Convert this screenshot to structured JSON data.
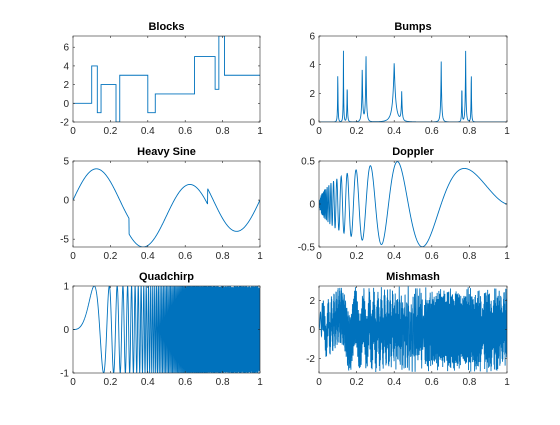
{
  "figure": {
    "line_color": "#0072BD",
    "axes_color": "#262626"
  },
  "chart_data": [
    {
      "type": "line",
      "title": "Blocks",
      "xlim": [
        0,
        1
      ],
      "ylim": [
        -2,
        7.2
      ],
      "xticks": [
        0,
        0.2,
        0.4,
        0.6,
        0.8,
        1
      ],
      "xtick_labels": [
        "0",
        "0.2",
        "0.4",
        "0.6",
        "0.8",
        "1"
      ],
      "yticks": [
        -2,
        0,
        2,
        4,
        6
      ],
      "ytick_labels": [
        "-2",
        "0",
        "2",
        "4",
        "6"
      ],
      "series": [
        {
          "x": [
            0,
            0.1,
            0.1,
            0.13,
            0.13,
            0.15,
            0.15,
            0.23,
            0.23,
            0.25,
            0.25,
            0.4,
            0.4,
            0.44,
            0.44,
            0.65,
            0.65,
            0.76,
            0.76,
            0.78,
            0.78,
            0.81,
            0.81,
            1
          ],
          "y": [
            0,
            0,
            4.0,
            4.0,
            -1.0,
            -1.0,
            2.0,
            2.0,
            -2.0,
            -2.0,
            3.0,
            3.0,
            -1.0,
            -1.0,
            1.0,
            1.0,
            5.0,
            5.0,
            1.5,
            1.5,
            7.2,
            7.2,
            3.0,
            3.0
          ]
        }
      ]
    },
    {
      "type": "line",
      "title": "Bumps",
      "xlim": [
        0,
        1
      ],
      "ylim": [
        0,
        6
      ],
      "xticks": [
        0,
        0.2,
        0.4,
        0.6,
        0.8,
        1
      ],
      "xtick_labels": [
        "0",
        "0.2",
        "0.4",
        "0.6",
        "0.8",
        "1"
      ],
      "yticks": [
        0,
        2,
        4,
        6
      ],
      "ytick_labels": [
        "0",
        "2",
        "4",
        "6"
      ],
      "bumps": {
        "t": [
          0.1,
          0.13,
          0.15,
          0.23,
          0.25,
          0.4,
          0.44,
          0.65,
          0.76,
          0.78,
          0.81
        ],
        "h": [
          4,
          5,
          3,
          4,
          5,
          4.2,
          2.1,
          4.3,
          3.1,
          5.1,
          4.2
        ],
        "w": [
          0.005,
          0.005,
          0.006,
          0.01,
          0.01,
          0.03,
          0.01,
          0.01,
          0.005,
          0.008,
          0.005
        ]
      }
    },
    {
      "type": "line",
      "title": "Heavy Sine",
      "xlim": [
        0,
        1
      ],
      "ylim": [
        -6,
        5
      ],
      "xticks": [
        0,
        0.2,
        0.4,
        0.6,
        0.8,
        1
      ],
      "xtick_labels": [
        "0",
        "0.2",
        "0.4",
        "0.6",
        "0.8",
        "1"
      ],
      "yticks": [
        -5,
        0,
        5
      ],
      "ytick_labels": [
        "-5",
        "0",
        "5"
      ]
    },
    {
      "type": "line",
      "title": "Doppler",
      "xlim": [
        0,
        1
      ],
      "ylim": [
        -0.5,
        0.5
      ],
      "xticks": [
        0,
        0.2,
        0.4,
        0.6,
        0.8,
        1
      ],
      "xtick_labels": [
        "0",
        "0.2",
        "0.4",
        "0.6",
        "0.8",
        "1"
      ],
      "yticks": [
        -0.5,
        0,
        0.5
      ],
      "ytick_labels": [
        "-0.5",
        "0",
        "0.5"
      ]
    },
    {
      "type": "line",
      "title": "Quadchirp",
      "xlim": [
        0,
        1
      ],
      "ylim": [
        -1,
        1
      ],
      "xticks": [
        0,
        0.2,
        0.4,
        0.6,
        0.8,
        1
      ],
      "xtick_labels": [
        "0",
        "0.2",
        "0.4",
        "0.6",
        "0.8",
        "1"
      ],
      "yticks": [
        -1,
        0,
        1
      ],
      "ytick_labels": [
        "-1",
        "0",
        "1"
      ]
    },
    {
      "type": "line",
      "title": "Mishmash",
      "xlim": [
        0,
        1
      ],
      "ylim": [
        -3,
        3
      ],
      "xticks": [
        0,
        0.2,
        0.4,
        0.6,
        0.8,
        1
      ],
      "xtick_labels": [
        "0",
        "0.2",
        "0.4",
        "0.6",
        "0.8",
        "1"
      ],
      "yticks": [
        -2,
        0,
        2
      ],
      "ytick_labels": [
        "-2",
        "0",
        "2"
      ]
    }
  ]
}
